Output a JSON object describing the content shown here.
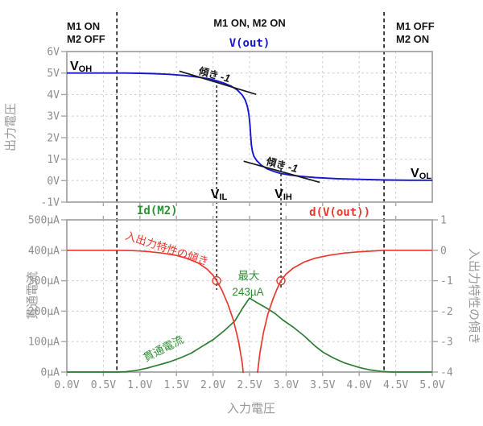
{
  "regions": {
    "left": [
      "M1 ON",
      "M2 OFF"
    ],
    "middle": "M1 ON, M2 ON",
    "right": [
      "M1 OFF",
      "M2 ON"
    ]
  },
  "axes": {
    "x_title": "入力電圧",
    "top_y_title": "出力電圧",
    "bottom_y_title": "貫通電流",
    "right_y_title": "入出力特性の傾き"
  },
  "chart_data": [
    {
      "type": "line",
      "title": "V(out)",
      "ylabel": "出力電圧",
      "x_range": [
        0,
        5
      ],
      "y_range": [
        -1,
        6
      ],
      "grid": true,
      "y_ticks": [
        {
          "v": 6,
          "t": "6V"
        },
        {
          "v": 5,
          "t": "5V"
        },
        {
          "v": 4,
          "t": "4V"
        },
        {
          "v": 3,
          "t": "3V"
        },
        {
          "v": 2,
          "t": "2V"
        },
        {
          "v": 1,
          "t": "1V"
        },
        {
          "v": 0,
          "t": "0V"
        },
        {
          "v": -1,
          "t": "-1V"
        }
      ],
      "series": [
        {
          "name": "V(out)",
          "color": "#1515d2",
          "points": [
            [
              0,
              5.0
            ],
            [
              0.5,
              5.0
            ],
            [
              0.8,
              5.0
            ],
            [
              1.0,
              4.99
            ],
            [
              1.2,
              4.97
            ],
            [
              1.4,
              4.94
            ],
            [
              1.6,
              4.89
            ],
            [
              1.8,
              4.81
            ],
            [
              1.95,
              4.73
            ],
            [
              2.05,
              4.64
            ],
            [
              2.15,
              4.53
            ],
            [
              2.25,
              4.39
            ],
            [
              2.33,
              4.22
            ],
            [
              2.4,
              3.98
            ],
            [
              2.44,
              3.75
            ],
            [
              2.47,
              3.45
            ],
            [
              2.49,
              3.1
            ],
            [
              2.505,
              2.6
            ],
            [
              2.515,
              2.1
            ],
            [
              2.525,
              1.65
            ],
            [
              2.54,
              1.35
            ],
            [
              2.56,
              1.13
            ],
            [
              2.6,
              0.92
            ],
            [
              2.66,
              0.72
            ],
            [
              2.74,
              0.55
            ],
            [
              2.84,
              0.42
            ],
            [
              2.93,
              0.33
            ],
            [
              3.05,
              0.26
            ],
            [
              3.2,
              0.2
            ],
            [
              3.4,
              0.14
            ],
            [
              3.7,
              0.09
            ],
            [
              4.0,
              0.06
            ],
            [
              4.35,
              0.03
            ],
            [
              4.7,
              0.02
            ],
            [
              5.0,
              0.02
            ]
          ]
        }
      ],
      "tangents": [
        {
          "p1": [
            1.54,
            5.09
          ],
          "p2": [
            2.59,
            4.01
          ],
          "label": "傾き",
          "value": "-1"
        },
        {
          "p1": [
            2.42,
            0.9
          ],
          "p2": [
            3.46,
            -0.08
          ],
          "label": "傾き",
          "value": "-1"
        }
      ],
      "levels": {
        "voh": {
          "main": "V",
          "sub": "OH",
          "value_v": 5
        },
        "vol": {
          "main": "V",
          "sub": "OL",
          "value_v": 0
        },
        "vil": {
          "main": "V",
          "sub": "IL",
          "x": 2.05
        },
        "vih": {
          "main": "V",
          "sub": "IH",
          "x": 2.93
        }
      }
    },
    {
      "type": "line",
      "xlabel": "入力電圧",
      "x_range": [
        0,
        5
      ],
      "grid": true,
      "x_ticks": [
        {
          "v": 0,
          "t": "0.0V"
        },
        {
          "v": 0.5,
          "t": "0.5V"
        },
        {
          "v": 1,
          "t": "1.0V"
        },
        {
          "v": 1.5,
          "t": "1.5V"
        },
        {
          "v": 2,
          "t": "2.0V"
        },
        {
          "v": 2.5,
          "t": "2.5V"
        },
        {
          "v": 3,
          "t": "3.0V"
        },
        {
          "v": 3.5,
          "t": "3.5V"
        },
        {
          "v": 4,
          "t": "4.0V"
        },
        {
          "v": 4.5,
          "t": "4.5V"
        },
        {
          "v": 5,
          "t": "5.0V"
        }
      ],
      "left_axis": {
        "label": "貫通電流",
        "range": [
          0,
          500
        ],
        "unit": "µA",
        "ticks": [
          {
            "v": 500,
            "t": "500µA"
          },
          {
            "v": 400,
            "t": "400µA"
          },
          {
            "v": 300,
            "t": "300µA"
          },
          {
            "v": 200,
            "t": "200µA"
          },
          {
            "v": 100,
            "t": "100µA"
          },
          {
            "v": 0,
            "t": "0µA"
          }
        ]
      },
      "right_axis": {
        "label": "入出力特性の傾き",
        "range": [
          -4,
          1
        ],
        "ticks": [
          {
            "v": 1,
            "t": "1"
          },
          {
            "v": 0,
            "t": "0"
          },
          {
            "v": -1,
            "t": "-1"
          },
          {
            "v": -2,
            "t": "-2"
          },
          {
            "v": -3,
            "t": "-3"
          },
          {
            "v": -4,
            "t": "-4"
          }
        ]
      },
      "series": [
        {
          "name": "Id(M2)",
          "axis": "left",
          "color": "#2e7d32",
          "points": [
            [
              0,
              0
            ],
            [
              0.68,
              0
            ],
            [
              0.8,
              1
            ],
            [
              0.95,
              5
            ],
            [
              1.1,
              13
            ],
            [
              1.25,
              23
            ],
            [
              1.4,
              33
            ],
            [
              1.55,
              46
            ],
            [
              1.7,
              62
            ],
            [
              1.85,
              84
            ],
            [
              2.0,
              106
            ],
            [
              2.15,
              135
            ],
            [
              2.3,
              168
            ],
            [
              2.4,
              208
            ],
            [
              2.5,
              243
            ],
            [
              2.6,
              228
            ],
            [
              2.72,
              212
            ],
            [
              2.85,
              192
            ],
            [
              2.95,
              172
            ],
            [
              3.1,
              147
            ],
            [
              3.25,
              118
            ],
            [
              3.4,
              85
            ],
            [
              3.5,
              66
            ],
            [
              3.65,
              46
            ],
            [
              3.8,
              30
            ],
            [
              4.0,
              15
            ],
            [
              4.15,
              7
            ],
            [
              4.3,
              2
            ],
            [
              4.45,
              0
            ],
            [
              5.0,
              0
            ]
          ]
        },
        {
          "name": "d(V(out))",
          "axis": "right",
          "color": "#e8392e",
          "points": [
            [
              0,
              0
            ],
            [
              0.68,
              0
            ],
            [
              0.9,
              -0.01
            ],
            [
              1.1,
              -0.04
            ],
            [
              1.3,
              -0.09
            ],
            [
              1.5,
              -0.17
            ],
            [
              1.65,
              -0.27
            ],
            [
              1.8,
              -0.42
            ],
            [
              1.92,
              -0.62
            ],
            [
              2.0,
              -0.82
            ],
            [
              2.05,
              -1.0
            ],
            [
              2.12,
              -1.3
            ],
            [
              2.2,
              -1.75
            ],
            [
              2.28,
              -2.3
            ],
            [
              2.35,
              -3.0
            ],
            [
              2.4,
              -3.7
            ],
            [
              2.43,
              -4.4
            ],
            [
              2.45,
              -5.2
            ],
            [
              2.47,
              -6.2
            ],
            [
              2.55,
              -6.2
            ],
            [
              2.57,
              -5.2
            ],
            [
              2.6,
              -4.2
            ],
            [
              2.64,
              -3.4
            ],
            [
              2.69,
              -2.7
            ],
            [
              2.75,
              -2.1
            ],
            [
              2.82,
              -1.6
            ],
            [
              2.88,
              -1.25
            ],
            [
              2.93,
              -1.0
            ],
            [
              3.0,
              -0.78
            ],
            [
              3.1,
              -0.58
            ],
            [
              3.25,
              -0.38
            ],
            [
              3.4,
              -0.26
            ],
            [
              3.6,
              -0.16
            ],
            [
              3.8,
              -0.09
            ],
            [
              4.0,
              -0.05
            ],
            [
              4.2,
              -0.02
            ],
            [
              4.34,
              0
            ],
            [
              5.0,
              0
            ]
          ]
        }
      ],
      "markers": [
        {
          "x": 2.05,
          "y": -1
        },
        {
          "x": 2.93,
          "y": -1
        }
      ],
      "curve_labels": {
        "red_slope": "入出力特性の傾き",
        "green_current": "貫通電流",
        "peak_line1": "最大",
        "peak_line2": "243µA"
      },
      "boundaries": {
        "left_x": 0.685,
        "right_x": 4.34
      }
    }
  ]
}
